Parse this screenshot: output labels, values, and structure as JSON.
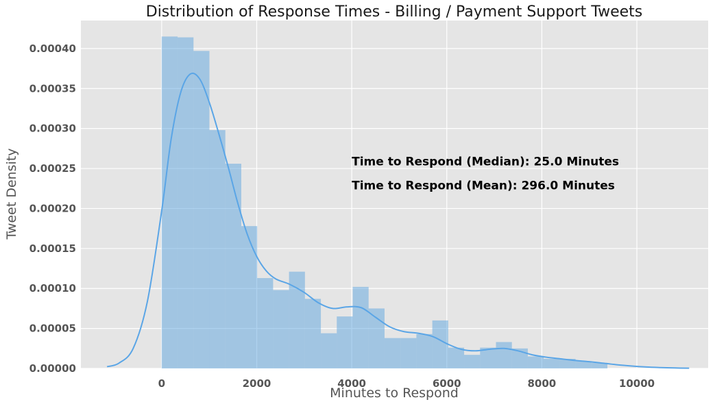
{
  "chart_data": {
    "type": "histogram",
    "title": "Distribution of Response Times - Billing / Payment Support Tweets",
    "xlabel": "Minutes to Respond",
    "ylabel": "Tweet Density",
    "xlim": [
      -1700,
      11500
    ],
    "ylim": [
      0,
      0.000435
    ],
    "xticks": [
      0,
      2000,
      4000,
      6000,
      8000,
      10000
    ],
    "xtick_labels": [
      "0",
      "2000",
      "4000",
      "6000",
      "8000",
      "10000"
    ],
    "yticks": [
      0,
      5e-05,
      0.0001,
      0.00015,
      0.0002,
      0.00025,
      0.0003,
      0.00035,
      0.0004
    ],
    "ytick_labels": [
      "0.00000",
      "0.00005",
      "0.00010",
      "0.00015",
      "0.00020",
      "0.00025",
      "0.00030",
      "0.00035",
      "0.00040"
    ],
    "grid": true,
    "bar_color": "#5da5e0",
    "line_color": "#5aa5e6",
    "background_color": "#e5e5e5",
    "bin_width": 335,
    "bins": [
      {
        "x0": 0,
        "density": 0.000415
      },
      {
        "x0": 335,
        "density": 0.000414
      },
      {
        "x0": 670,
        "density": 0.000397
      },
      {
        "x0": 1005,
        "density": 0.000298
      },
      {
        "x0": 1340,
        "density": 0.000256
      },
      {
        "x0": 1675,
        "density": 0.000178
      },
      {
        "x0": 2010,
        "density": 0.000113
      },
      {
        "x0": 2345,
        "density": 9.8e-05
      },
      {
        "x0": 2680,
        "density": 0.000121
      },
      {
        "x0": 3015,
        "density": 8.7e-05
      },
      {
        "x0": 3350,
        "density": 4.4e-05
      },
      {
        "x0": 3685,
        "density": 6.5e-05
      },
      {
        "x0": 4020,
        "density": 0.000102
      },
      {
        "x0": 4355,
        "density": 7.5e-05
      },
      {
        "x0": 4690,
        "density": 3.8e-05
      },
      {
        "x0": 5025,
        "density": 3.8e-05
      },
      {
        "x0": 5360,
        "density": 4.3e-05
      },
      {
        "x0": 5695,
        "density": 6e-05
      },
      {
        "x0": 6030,
        "density": 2.6e-05
      },
      {
        "x0": 6365,
        "density": 1.7e-05
      },
      {
        "x0": 6700,
        "density": 2.6e-05
      },
      {
        "x0": 7035,
        "density": 3.3e-05
      },
      {
        "x0": 7370,
        "density": 2.5e-05
      },
      {
        "x0": 7705,
        "density": 1.5e-05
      },
      {
        "x0": 8040,
        "density": 1.2e-05
      },
      {
        "x0": 8375,
        "density": 1.2e-05
      },
      {
        "x0": 8710,
        "density": 9e-06
      },
      {
        "x0": 9045,
        "density": 7e-06
      }
    ],
    "kde": {
      "x": [
        -1150,
        -900,
        -600,
        -300,
        0,
        200,
        400,
        600,
        800,
        1000,
        1200,
        1400,
        1600,
        1800,
        2000,
        2200,
        2400,
        2700,
        3000,
        3300,
        3600,
        3900,
        4200,
        4500,
        4800,
        5100,
        5400,
        5700,
        6000,
        6300,
        6600,
        6900,
        7200,
        7500,
        7800,
        8100,
        8400,
        8700,
        9000,
        9300,
        9600,
        9900,
        10200,
        10500,
        10800,
        11100
      ],
      "y": [
        2.2e-06,
        6.6e-06,
        2.5e-05,
        8.4e-05,
        0.000197,
        0.000287,
        0.000345,
        0.000368,
        0.000362,
        0.000333,
        0.000294,
        0.000252,
        0.000207,
        0.000168,
        0.00014,
        0.000122,
        0.000112,
        0.000105,
        9.5e-05,
        8.2e-05,
        7.5e-05,
        7.7e-05,
        7.6e-05,
        6.4e-05,
        5.2e-05,
        4.6e-05,
        4.4e-05,
        4e-05,
        3.1e-05,
        2.4e-05,
        2.2e-05,
        2.4e-05,
        2.5e-05,
        2.2e-05,
        1.7e-05,
        1.4e-05,
        1.2e-05,
        1e-05,
        8.5e-06,
        6.5e-06,
        4.5e-06,
        3e-06,
        1.8e-06,
        1.1e-06,
        6e-07,
        3e-07
      ]
    },
    "annotations": [
      {
        "text": "Time to Respond (Median): 25.0 Minutes",
        "x": 4000,
        "y": 0.000254
      },
      {
        "text": "Time to Respond (Mean): 296.0 Minutes",
        "x": 4000,
        "y": 0.000224
      }
    ]
  }
}
